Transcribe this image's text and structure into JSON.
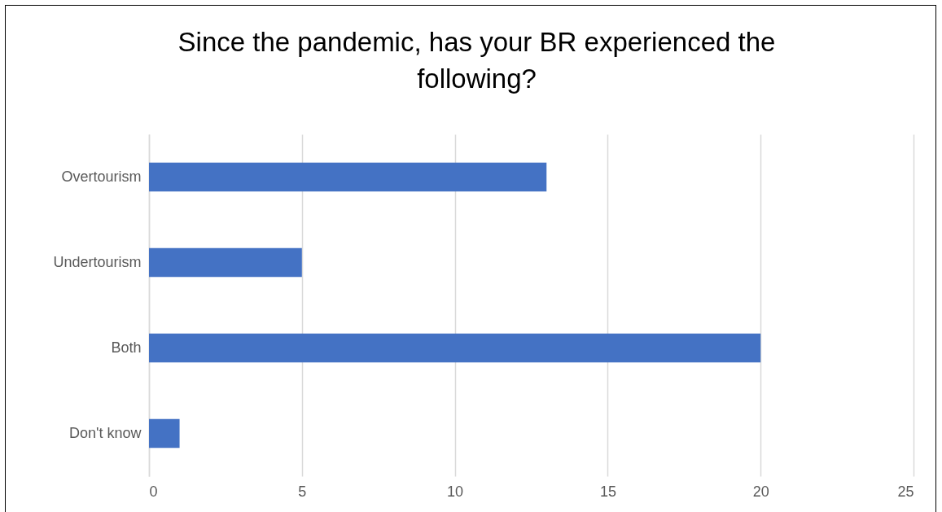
{
  "chart_data": {
    "type": "bar",
    "orientation": "horizontal",
    "title": "Since the pandemic, has your BR experienced the following?",
    "categories": [
      "Overtourism",
      "Undertourism",
      "Both",
      "Don't know"
    ],
    "values": [
      13,
      5,
      20,
      1
    ],
    "color": "#4472c4",
    "xlim": [
      0,
      25
    ],
    "xticks": [
      0,
      5,
      10,
      15,
      20,
      25
    ],
    "grid": "x"
  }
}
